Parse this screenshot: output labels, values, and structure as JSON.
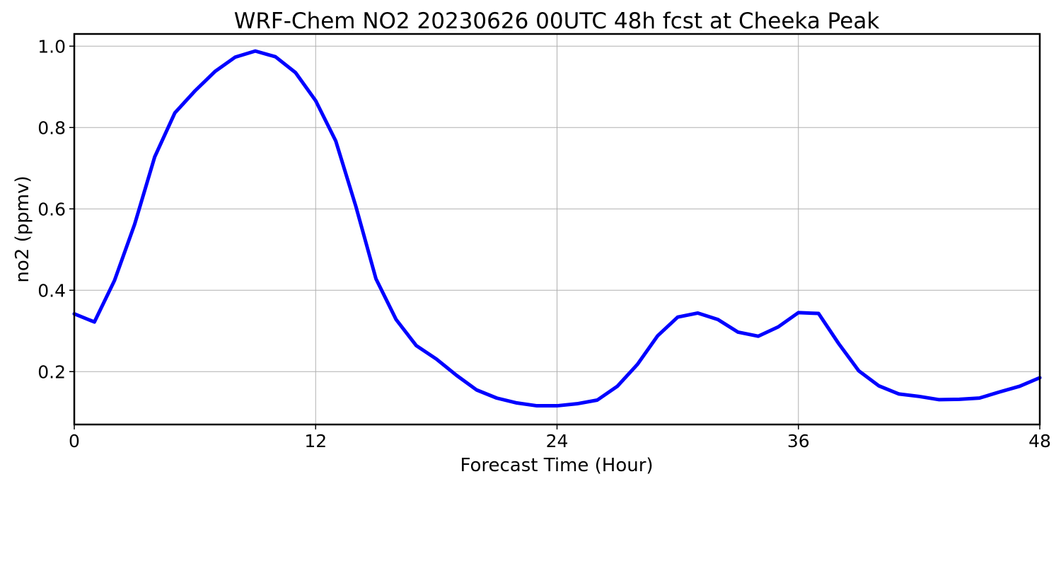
{
  "chart_data": {
    "type": "line",
    "title": "WRF-Chem NO2  20230626 00UTC 48h fcst at Cheeka Peak",
    "xlabel": "Forecast Time (Hour)",
    "ylabel": "no2  (ppmv)",
    "xlim": [
      0,
      48
    ],
    "ylim": [
      0.07,
      1.03
    ],
    "xticks": [
      0,
      12,
      24,
      36,
      48
    ],
    "yticks": [
      0.2,
      0.4,
      0.6,
      0.8,
      1.0
    ],
    "xtick_labels": [
      "0",
      "12",
      "24",
      "36",
      "48"
    ],
    "ytick_labels": [
      "0.2",
      "0.4",
      "0.6",
      "0.8",
      "1.0"
    ],
    "grid": true,
    "legend": "none",
    "line_color": "#0000ff",
    "series": [
      {
        "x": [
          0,
          1,
          2,
          3,
          4,
          5,
          6,
          7,
          8,
          9,
          10,
          11,
          12,
          13,
          14,
          15,
          16,
          17,
          18,
          19,
          20,
          21,
          22,
          23,
          24,
          25,
          26,
          27,
          28,
          29,
          30,
          31,
          32,
          33,
          34,
          35,
          36,
          37,
          38,
          39,
          40,
          41,
          42,
          43,
          44,
          45,
          46,
          47,
          48
        ],
        "values": [
          0.342,
          0.322,
          0.424,
          0.562,
          0.728,
          0.836,
          0.89,
          0.938,
          0.973,
          0.988,
          0.974,
          0.935,
          0.866,
          0.767,
          0.606,
          0.428,
          0.328,
          0.264,
          0.231,
          0.191,
          0.155,
          0.135,
          0.123,
          0.116,
          0.116,
          0.121,
          0.13,
          0.164,
          0.218,
          0.288,
          0.334,
          0.344,
          0.328,
          0.297,
          0.287,
          0.31,
          0.345,
          0.343,
          0.269,
          0.202,
          0.165,
          0.145,
          0.139,
          0.131,
          0.132,
          0.135,
          0.15,
          0.164,
          0.185
        ]
      }
    ]
  }
}
